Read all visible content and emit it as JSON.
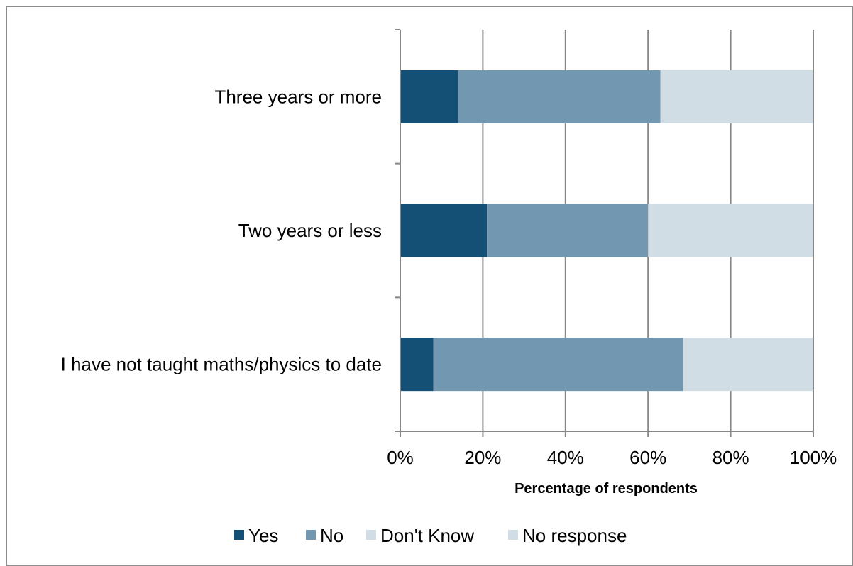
{
  "chart_data": {
    "type": "bar",
    "orientation": "horizontal",
    "stacked": true,
    "categories": [
      "Three years or more",
      "Two years or less",
      "I have not taught maths/physics to date"
    ],
    "series": [
      {
        "name": "Yes",
        "color": "#144f75",
        "values": [
          14,
          21,
          8
        ]
      },
      {
        "name": "No",
        "color": "#7297b0",
        "values": [
          49,
          39,
          60.5
        ]
      },
      {
        "name": "Don't Know",
        "color": "#d0dde5",
        "values": [
          37,
          40,
          31.5
        ]
      },
      {
        "name": "No response",
        "color": "#d0dde5",
        "values": [
          0,
          0,
          0
        ]
      }
    ],
    "xlabel": "Percentage of respondents",
    "xlim": [
      0,
      100
    ],
    "ticks": [
      "0%",
      "20%",
      "40%",
      "60%",
      "80%",
      "100%"
    ],
    "tick_values": [
      0,
      20,
      40,
      60,
      80,
      100
    ],
    "grid": true,
    "legend": "bottom"
  }
}
